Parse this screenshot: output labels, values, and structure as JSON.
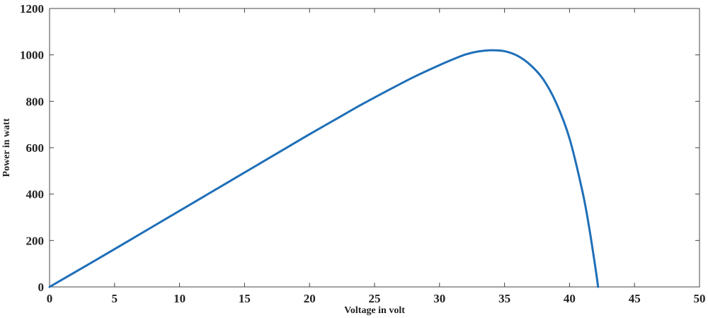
{
  "chart_data": {
    "type": "line",
    "title": "",
    "xlabel": "Voltage in volt",
    "ylabel": "Power in watt",
    "xlim": [
      0,
      50
    ],
    "ylim": [
      0,
      1200
    ],
    "xticks": [
      0,
      5,
      10,
      15,
      20,
      25,
      30,
      35,
      40,
      45,
      50
    ],
    "yticks": [
      0,
      200,
      400,
      600,
      800,
      1000,
      1200
    ],
    "grid": false,
    "legend": "none",
    "line_color": "#1f6fb8",
    "series": [
      {
        "x": [
          0,
          2,
          4,
          6,
          8,
          10,
          12,
          14,
          16,
          18,
          20,
          22,
          24,
          26,
          28,
          30,
          31,
          32,
          33,
          34,
          35,
          36,
          37,
          38,
          39,
          40,
          41,
          41.5,
          42,
          42.2
        ],
        "y": [
          0,
          65,
          130,
          196,
          262,
          328,
          394,
          460,
          526,
          592,
          658,
          722,
          786,
          846,
          904,
          956,
          980,
          1002,
          1015,
          1020,
          1016,
          996,
          956,
          893,
          790,
          640,
          410,
          260,
          80,
          0
        ]
      }
    ]
  }
}
